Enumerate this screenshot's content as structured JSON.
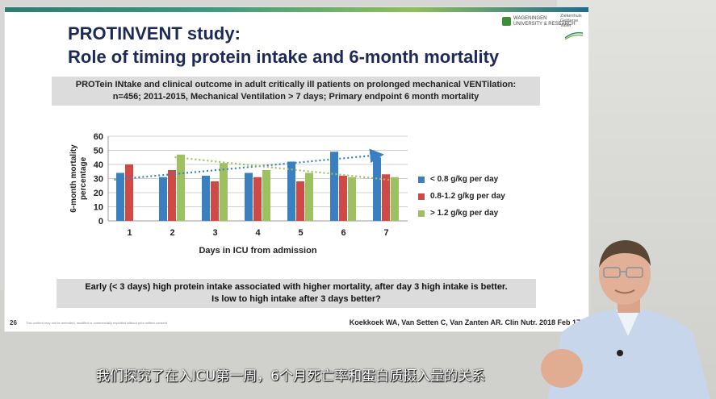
{
  "slide": {
    "title_line1": "PROTINVENT study:",
    "title_line2": "Role of timing protein intake and 6-month mortality",
    "logo_left": [
      "WAGENINGEN",
      "UNIVERSITY & RESEARCH"
    ],
    "logo_right": [
      "Ziekenhuis",
      "Gelderse",
      "Vallei"
    ],
    "info_line1": "PROTein INtake and clinical outcome in adult critically ill patients on prolonged mechanical VENTilation:",
    "info_line2": "n=456; 2011-2015, Mechanical Ventilation > 7 days; Primary endpoint 6 month mortality",
    "conclusion_line1": "Early (< 3 days) high protein intake associated with higher mortality, after day 3 high intake is better.",
    "conclusion_line2": "Is low to high intake after 3 days better?",
    "page_number": "26",
    "disclaimer": "This content may not be amended, modified or commercially exploited without prior written consent",
    "citation": "Koekkoek WA, Van Setten C, Van Zanten AR. Clin Nutr. 2018 Feb 17"
  },
  "video_subtitle": "我们探究了在入ICU第一周，6个月死亡率和蛋白质摄入量的关系",
  "chart_data": {
    "type": "bar",
    "title": "",
    "xlabel": "Days in ICU from admission",
    "ylabel": "6-month mortality percentage",
    "categories": [
      "1",
      "2",
      "3",
      "4",
      "5",
      "6",
      "7"
    ],
    "ylim": [
      0,
      60
    ],
    "yticks": [
      "0",
      "10",
      "20",
      "30",
      "40",
      "50",
      "60"
    ],
    "grid": true,
    "legend_position": "right",
    "series": [
      {
        "name": "< 0.8 g/kg per day",
        "color": "#3a7fc0",
        "values": [
          34,
          31,
          32,
          34,
          42,
          49,
          45
        ]
      },
      {
        "name": "0.8-1.2 g/kg per day",
        "color": "#cf4a46",
        "values": [
          40,
          36,
          28,
          31,
          28,
          32,
          33
        ]
      },
      {
        "name": "> 1.2 g/kg per day",
        "color": "#9dc160",
        "values": [
          null,
          47,
          41,
          36,
          34,
          31,
          31
        ]
      }
    ],
    "trendlines": [
      {
        "series": "< 0.8 g/kg per day",
        "color": "#3a7fc0",
        "arrow": true
      },
      {
        "series": "> 1.2 g/kg per day",
        "color": "#9dc160",
        "arrow": false
      }
    ]
  }
}
